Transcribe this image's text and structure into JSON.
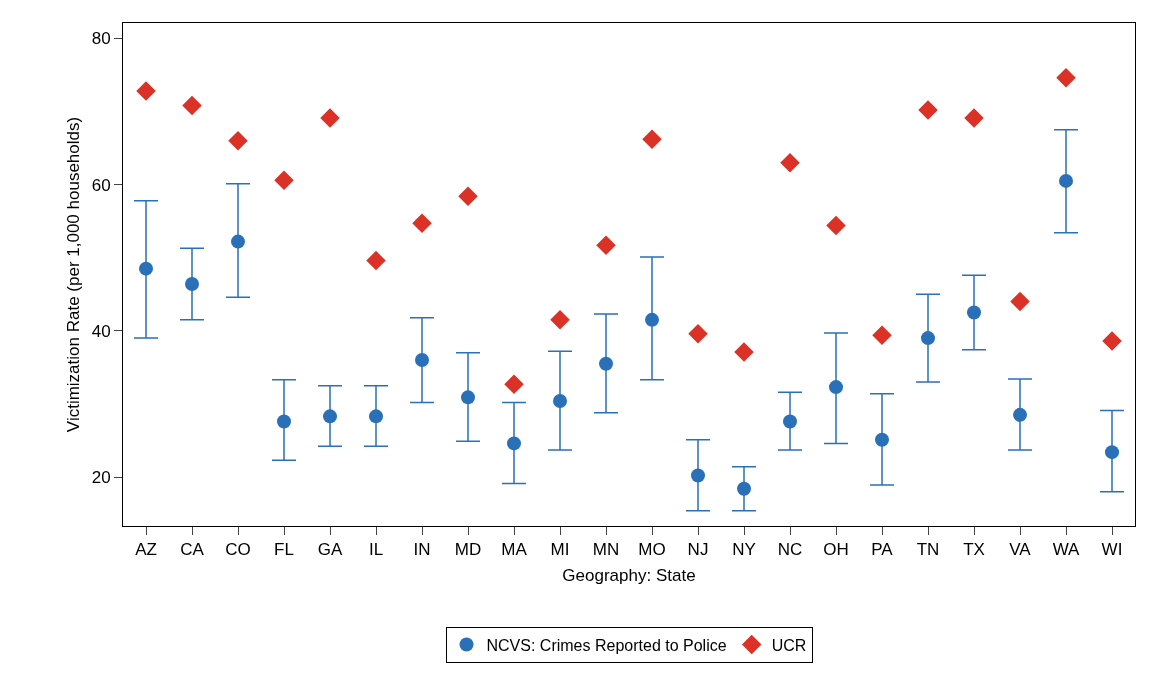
{
  "chart_data": {
    "type": "scatter",
    "xlabel": "Geography: State",
    "ylabel": "Victimization Rate (per 1,000 households)",
    "categories": [
      "AZ",
      "CA",
      "CO",
      "FL",
      "GA",
      "IL",
      "IN",
      "MD",
      "MA",
      "MI",
      "MN",
      "MO",
      "NJ",
      "NY",
      "NC",
      "OH",
      "PA",
      "TN",
      "TX",
      "VA",
      "WA",
      "WI"
    ],
    "ylim": [
      13.3,
      82.1
    ],
    "yticks": [
      20,
      40,
      60,
      80
    ],
    "grid": false,
    "legend": "bottom",
    "series": [
      {
        "name": "NCVS: Crimes Reported to Police",
        "color": "#2a70b8",
        "marker": "circle",
        "values": [
          48.5,
          46.4,
          52.2,
          27.6,
          28.3,
          28.3,
          36.0,
          30.9,
          24.6,
          30.4,
          35.5,
          41.5,
          20.2,
          18.4,
          27.6,
          32.3,
          25.1,
          39.0,
          42.5,
          28.5,
          60.5,
          23.4
        ],
        "errors": [
          [
            39.0,
            57.8
          ],
          [
            41.5,
            51.3
          ],
          [
            44.6,
            60.1
          ],
          [
            22.3,
            33.3
          ],
          [
            24.2,
            32.5
          ],
          [
            24.2,
            32.5
          ],
          [
            30.2,
            41.8
          ],
          [
            24.9,
            37.0
          ],
          [
            19.1,
            30.2
          ],
          [
            23.7,
            37.2
          ],
          [
            28.8,
            42.3
          ],
          [
            33.3,
            50.1
          ],
          [
            15.4,
            25.1
          ],
          [
            15.4,
            21.4
          ],
          [
            23.7,
            31.6
          ],
          [
            24.6,
            39.7
          ],
          [
            18.9,
            31.4
          ],
          [
            33.0,
            45.0
          ],
          [
            37.4,
            47.6
          ],
          [
            23.7,
            33.4
          ],
          [
            53.4,
            67.5
          ],
          [
            18.0,
            29.1
          ]
        ]
      },
      {
        "name": "UCR",
        "color": "#dc3126",
        "marker": "diamond",
        "values": [
          72.8,
          70.8,
          66.0,
          60.6,
          69.1,
          49.6,
          54.7,
          58.4,
          32.7,
          41.5,
          51.7,
          66.2,
          39.6,
          37.1,
          63.0,
          54.4,
          39.4,
          70.2,
          69.1,
          44.0,
          74.6,
          38.6
        ]
      }
    ]
  }
}
